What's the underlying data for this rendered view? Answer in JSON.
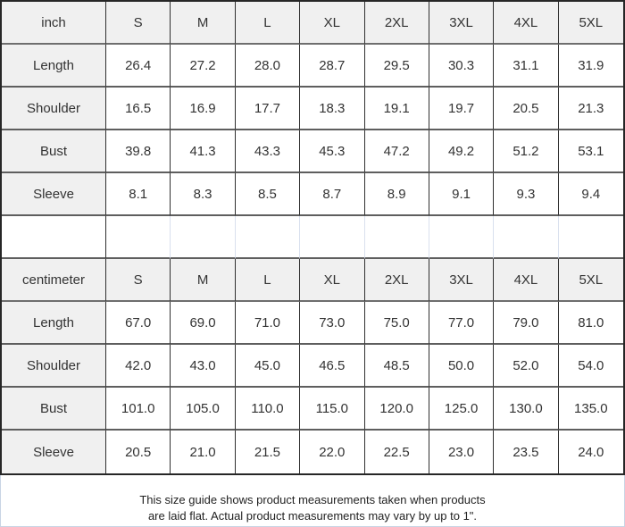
{
  "chart_data": [
    {
      "type": "table",
      "unit": "inch",
      "sizes": [
        "S",
        "M",
        "L",
        "XL",
        "2XL",
        "3XL",
        "4XL",
        "5XL"
      ],
      "rows": [
        {
          "label": "Length",
          "values": [
            "26.4",
            "27.2",
            "28.0",
            "28.7",
            "29.5",
            "30.3",
            "31.1",
            "31.9"
          ]
        },
        {
          "label": "Shoulder",
          "values": [
            "16.5",
            "16.9",
            "17.7",
            "18.3",
            "19.1",
            "19.7",
            "20.5",
            "21.3"
          ]
        },
        {
          "label": "Bust",
          "values": [
            "39.8",
            "41.3",
            "43.3",
            "45.3",
            "47.2",
            "49.2",
            "51.2",
            "53.1"
          ]
        },
        {
          "label": "Sleeve",
          "values": [
            "8.1",
            "8.3",
            "8.5",
            "8.7",
            "8.9",
            "9.1",
            "9.3",
            "9.4"
          ]
        }
      ]
    },
    {
      "type": "table",
      "unit": "centimeter",
      "sizes": [
        "S",
        "M",
        "L",
        "XL",
        "2XL",
        "3XL",
        "4XL",
        "5XL"
      ],
      "rows": [
        {
          "label": "Length",
          "values": [
            "67.0",
            "69.0",
            "71.0",
            "73.0",
            "75.0",
            "77.0",
            "79.0",
            "81.0"
          ]
        },
        {
          "label": "Shoulder",
          "values": [
            "42.0",
            "43.0",
            "45.0",
            "46.5",
            "48.5",
            "50.0",
            "52.0",
            "54.0"
          ]
        },
        {
          "label": "Bust",
          "values": [
            "101.0",
            "105.0",
            "110.0",
            "115.0",
            "120.0",
            "125.0",
            "130.0",
            "135.0"
          ]
        },
        {
          "label": "Sleeve",
          "values": [
            "20.5",
            "21.0",
            "21.5",
            "22.0",
            "22.5",
            "23.0",
            "23.5",
            "24.0"
          ]
        }
      ]
    }
  ],
  "footer": {
    "line1": "This size guide shows product measurements taken when products",
    "line2": "are laid flat. Actual product measurements may vary by up to 1\"."
  },
  "colors": {
    "header_bg": "#f0f0f0",
    "cell_bg": "#ffffff",
    "border_dark": "#303030",
    "border_row": "#5e5e5e",
    "border_faint": "#d9e0ee",
    "text": "#333333"
  }
}
